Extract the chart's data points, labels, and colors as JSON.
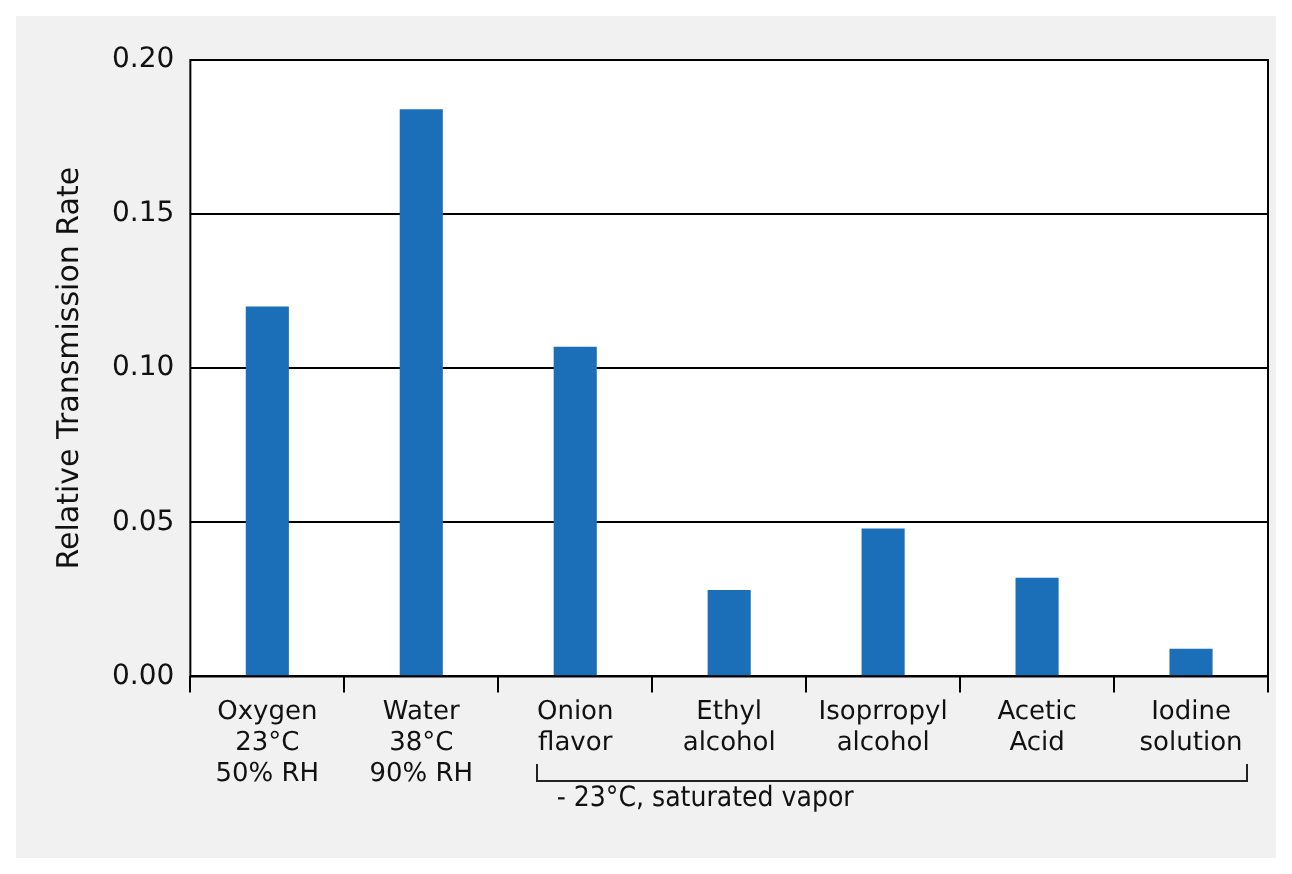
{
  "chart_data": {
    "type": "bar",
    "ylabel": "Relative Transmission Rate",
    "categories": [
      "Oxygen\n23°C\n50% RH",
      "Water\n38°C\n90% RH",
      "Onion\nflavor",
      "Ethyl\nalcohol",
      "Isoprropyl\nalcohol",
      "Acetic\nAcid",
      "Iodine\nsolution"
    ],
    "values": [
      0.12,
      0.184,
      0.107,
      0.028,
      0.048,
      0.032,
      0.009
    ],
    "color": "#1a6fb8",
    "ylim": [
      0,
      0.2
    ],
    "yticks": [
      {
        "value": 0,
        "label": "0.00"
      },
      {
        "value": 0.05,
        "label": "0.05"
      },
      {
        "value": 0.1,
        "label": "0.10"
      },
      {
        "value": 0.15,
        "label": "0.15"
      },
      {
        "value": 0.2,
        "label": "0.20"
      }
    ],
    "grid": "y",
    "legend": false,
    "annotations": [
      "-  23°C, saturated vapor"
    ]
  }
}
